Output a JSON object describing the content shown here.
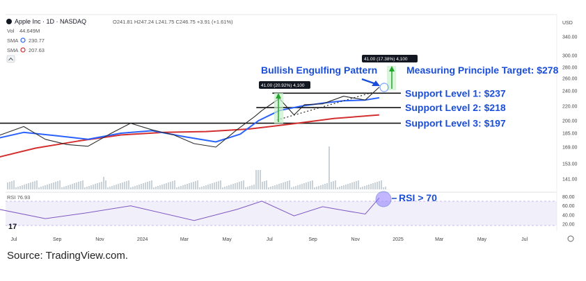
{
  "header": {
    "title": "Apple Inc · 1D · NASDAQ",
    "ohlc": "O241.81 H247.24 L241.75 C246.75 +3.91 (+1.61%)",
    "currency": "USD",
    "legend": [
      {
        "label": "Vol",
        "value": "44.649M"
      },
      {
        "label": "SMA",
        "value": "230.77"
      },
      {
        "label": "SMA",
        "value": "207.63"
      }
    ]
  },
  "source": "Source: TradingView.com.",
  "colors": {
    "sma_short": "#2962ff",
    "sma_long": "#d32f2f",
    "price": "#2b2b2b",
    "annotation_blue": "#1a4ed8",
    "green": "#22a52a",
    "rsi_line": "#7e57c2",
    "rsi_band": "#e6e1f5",
    "volume": "#c9d1d9"
  },
  "chart_data": {
    "type": "line",
    "x_ticks": [
      "Jul",
      "Sep",
      "Nov",
      "2024",
      "Mar",
      "May",
      "Jul",
      "Sep",
      "Nov",
      "2025",
      "Mar",
      "May",
      "Jul"
    ],
    "y_ticks": [
      "340.00",
      "300.00",
      "280.00",
      "260.00",
      "240.00",
      "220.00",
      "200.00",
      "185.00",
      "169.00",
      "153.00",
      "141.00"
    ],
    "rsi_ticks": [
      "80.00",
      "60.00",
      "40.00",
      "20.00"
    ],
    "rsi_label": "RSI 76.93",
    "series": [
      {
        "name": "Price",
        "x": [
          "2023-06-01",
          "2023-07-15",
          "2023-08-15",
          "2023-09-15",
          "2023-10-15",
          "2023-11-15",
          "2023-12-15",
          "2024-01-15",
          "2024-02-15",
          "2024-03-15",
          "2024-04-15",
          "2024-05-15",
          "2024-06-10",
          "2024-06-20",
          "2024-07-15",
          "2024-08-05",
          "2024-08-20",
          "2024-09-15",
          "2024-10-15",
          "2024-11-15",
          "2024-12-05"
        ],
        "values": [
          180,
          193,
          178,
          172,
          170,
          184,
          197,
          189,
          183,
          173,
          169,
          189,
          206,
          214,
          230,
          208,
          222,
          223,
          233,
          228,
          246
        ]
      },
      {
        "name": "SMA",
        "x": [
          "2023-06-01",
          "2023-07-15",
          "2023-09-01",
          "2023-10-15",
          "2023-12-01",
          "2024-01-15",
          "2024-03-01",
          "2024-04-15",
          "2024-05-20",
          "2024-06-15",
          "2024-07-15",
          "2024-08-15",
          "2024-09-15",
          "2024-10-15",
          "2024-11-15",
          "2024-12-05"
        ],
        "values": [
          178,
          186,
          182,
          178,
          185,
          188,
          181,
          175,
          184,
          200,
          214,
          220,
          224,
          227,
          228,
          231
        ]
      },
      {
        "name": "SMA",
        "x": [
          "2023-06-01",
          "2023-08-01",
          "2023-10-01",
          "2023-12-01",
          "2024-02-01",
          "2024-04-01",
          "2024-06-01",
          "2024-08-01",
          "2024-10-01",
          "2024-12-05"
        ],
        "values": [
          158,
          168,
          176,
          183,
          186,
          187,
          190,
          196,
          203,
          208
        ]
      }
    ],
    "rsi": {
      "x": [
        "2023-06-01",
        "2023-08-15",
        "2023-10-15",
        "2023-12-15",
        "2024-03-15",
        "2024-05-15",
        "2024-06-20",
        "2024-08-05",
        "2024-09-15",
        "2024-10-15",
        "2024-11-15",
        "2024-12-05"
      ],
      "values": [
        55,
        32,
        45,
        60,
        28,
        52,
        70,
        38,
        58,
        50,
        42,
        77
      ]
    },
    "levels": [
      {
        "label": "Support Level 1: $237",
        "value": 237,
        "from": "2024-07-05"
      },
      {
        "label": "Support Level 2: $218",
        "value": 218,
        "from": "2024-06-12"
      },
      {
        "label": "Support Level 3: $197",
        "value": 197,
        "from": "2023-06-01"
      }
    ],
    "annotations": {
      "pattern": "Bullish Engulfing Pattern",
      "target": "Measuring Principle Target: $278",
      "measure_1": "41.00 (20.92%) 4,100",
      "measure_2": "41.00 (17.38%) 4,100",
      "rsi_note": "RSI > 70"
    }
  }
}
